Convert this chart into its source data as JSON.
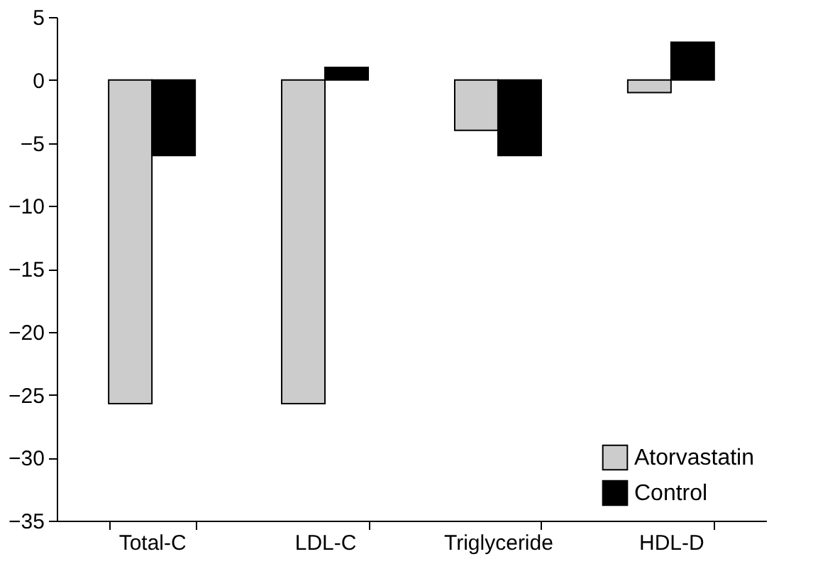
{
  "chart_data": {
    "type": "bar",
    "categories": [
      "Total-C",
      "LDL-C",
      "Triglyceride",
      "HDL-D"
    ],
    "series": [
      {
        "name": "Atorvastatin",
        "color": "#cccccc",
        "values": [
          -25.7,
          -25.7,
          -4,
          -1
        ]
      },
      {
        "name": "Control",
        "color": "#000000",
        "values": [
          -6,
          1,
          -6,
          3
        ]
      }
    ],
    "ylim": [
      -35,
      5
    ],
    "yticks": [
      -35,
      -30,
      -25,
      -20,
      -15,
      -10,
      -5,
      0,
      5
    ],
    "grid": false,
    "legend": "bottom right"
  }
}
